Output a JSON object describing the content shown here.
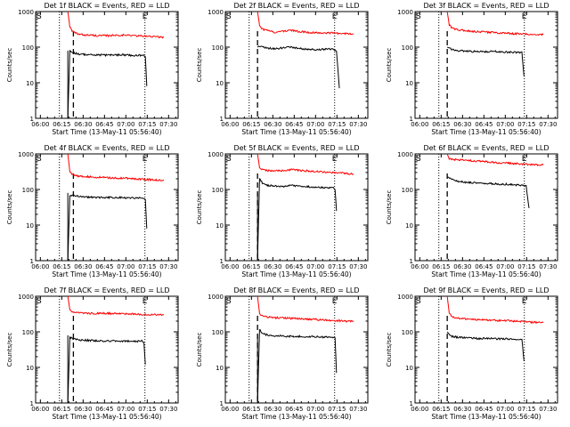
{
  "chart_data": [
    {
      "type": "line",
      "title": "Det 1f BLACK = Events, RED = LLD",
      "xlabel": "Start Time (13-May-11 05:56:40)",
      "ylabel": "Counts/sec",
      "yscale": "log",
      "ylim": [
        1,
        1000
      ],
      "yticks": [
        "1",
        "10",
        "100",
        "1000"
      ],
      "xticks": [
        "06:00",
        "06:15",
        "06:30",
        "06:45",
        "07:00",
        "07:15",
        "07:30"
      ],
      "x_range_minutes": [
        0,
        100
      ],
      "start_label": "S",
      "end_label": "E",
      "series": [
        {
          "name": "LLD",
          "color": "#ff0000",
          "x": [
            22.6,
            24,
            26,
            30,
            35,
            40,
            45,
            50,
            55,
            60,
            65,
            70,
            75,
            80,
            85,
            90
          ],
          "y": [
            1000,
            380,
            270,
            230,
            220,
            215,
            210,
            210,
            215,
            220,
            215,
            210,
            205,
            200,
            195,
            190
          ]
        },
        {
          "name": "Events",
          "color": "#000000",
          "x": [
            22.6,
            24,
            26,
            30,
            35,
            40,
            45,
            50,
            55,
            60,
            65,
            70,
            75,
            77,
            78
          ],
          "y": [
            1,
            80,
            70,
            65,
            62,
            60,
            60,
            60,
            60,
            62,
            60,
            58,
            60,
            55,
            8
          ]
        }
      ],
      "markers": {
        "dotted_x": [
          16.7,
          76.7
        ],
        "dashed_x": [
          26.5
        ],
        "solid_x": [
          22.6
        ]
      }
    },
    {
      "type": "line",
      "title": "Det 2f BLACK = Events, RED = LLD",
      "xlabel": "Start Time (13-May-11 05:56:40)",
      "ylabel": "Counts/sec",
      "yscale": "log",
      "ylim": [
        1,
        1000
      ],
      "yticks": [
        "1",
        "10",
        "100",
        "1000"
      ],
      "xticks": [
        "06:00",
        "06:15",
        "06:30",
        "06:45",
        "07:00",
        "07:15",
        "07:30"
      ],
      "x_range_minutes": [
        0,
        100
      ],
      "start_label": "S",
      "end_label": "E",
      "series": [
        {
          "name": "LLD",
          "color": "#ff0000",
          "x": [
            22.6,
            24,
            26,
            30,
            35,
            40,
            45,
            50,
            55,
            60,
            65,
            70,
            75,
            80,
            85,
            90
          ],
          "y": [
            1000,
            420,
            320,
            290,
            260,
            280,
            300,
            280,
            270,
            260,
            250,
            255,
            250,
            245,
            240,
            240
          ]
        },
        {
          "name": "Events",
          "color": "#000000",
          "x": [
            22.6,
            24,
            26,
            30,
            35,
            40,
            45,
            50,
            55,
            60,
            65,
            70,
            75,
            78,
            80
          ],
          "y": [
            100,
            110,
            100,
            95,
            90,
            95,
            100,
            95,
            90,
            88,
            85,
            88,
            90,
            80,
            7
          ]
        }
      ],
      "markers": {
        "dotted_x": [
          16.7,
          76.7
        ],
        "dashed_x": [
          22.6
        ],
        "solid_x": []
      }
    },
    {
      "type": "line",
      "title": "Det 3f BLACK = Events, RED = LLD",
      "xlabel": "Start Time (13-May-11 05:56:40)",
      "ylabel": "Counts/sec",
      "yscale": "log",
      "ylim": [
        1,
        1000
      ],
      "yticks": [
        "1",
        "10",
        "100",
        "1000"
      ],
      "xticks": [
        "06:00",
        "06:15",
        "06:30",
        "06:45",
        "07:00",
        "07:15",
        "07:30"
      ],
      "x_range_minutes": [
        0,
        100
      ],
      "start_label": "S",
      "end_label": "E",
      "series": [
        {
          "name": "LLD",
          "color": "#ff0000",
          "x": [
            22.6,
            24,
            26,
            30,
            35,
            40,
            45,
            50,
            55,
            60,
            65,
            70,
            75,
            80,
            85,
            90
          ],
          "y": [
            1000,
            420,
            340,
            310,
            290,
            280,
            270,
            265,
            260,
            250,
            245,
            240,
            235,
            230,
            225,
            225
          ]
        },
        {
          "name": "Events",
          "color": "#000000",
          "x": [
            22.6,
            24,
            26,
            30,
            35,
            40,
            45,
            50,
            55,
            60,
            65,
            70,
            75,
            76.5
          ],
          "y": [
            100,
            95,
            85,
            80,
            78,
            75,
            75,
            75,
            75,
            75,
            72,
            72,
            70,
            15
          ]
        }
      ],
      "markers": {
        "dotted_x": [
          16.7,
          76.7
        ],
        "dashed_x": [
          22.6
        ],
        "solid_x": []
      }
    },
    {
      "type": "line",
      "title": "Det 4f BLACK = Events, RED = LLD",
      "xlabel": "Start Time (13-May-11 05:56:40)",
      "ylabel": "Counts/sec",
      "yscale": "log",
      "ylim": [
        1,
        1000
      ],
      "yticks": [
        "1",
        "10",
        "100",
        "1000"
      ],
      "xticks": [
        "06:00",
        "06:15",
        "06:30",
        "06:45",
        "07:00",
        "07:15",
        "07:30"
      ],
      "x_range_minutes": [
        0,
        100
      ],
      "start_label": "S",
      "end_label": "E",
      "series": [
        {
          "name": "LLD",
          "color": "#ff0000",
          "x": [
            22.6,
            24,
            26,
            30,
            35,
            40,
            45,
            50,
            55,
            60,
            65,
            70,
            75,
            80,
            85,
            90
          ],
          "y": [
            1000,
            320,
            260,
            240,
            230,
            225,
            220,
            215,
            210,
            210,
            205,
            200,
            195,
            190,
            185,
            180
          ]
        },
        {
          "name": "Events",
          "color": "#000000",
          "x": [
            22.6,
            24,
            26,
            30,
            35,
            40,
            45,
            50,
            55,
            60,
            65,
            70,
            75,
            77,
            78
          ],
          "y": [
            1,
            70,
            68,
            65,
            62,
            60,
            60,
            60,
            60,
            60,
            58,
            58,
            60,
            55,
            8
          ]
        }
      ],
      "markers": {
        "dotted_x": [
          16.7,
          76.7
        ],
        "dashed_x": [
          26.5
        ],
        "solid_x": [
          22.6
        ]
      }
    },
    {
      "type": "line",
      "title": "Det 5f BLACK = Events, RED = LLD",
      "xlabel": "Start Time (13-May-11 05:56:40)",
      "ylabel": "Counts/sec",
      "yscale": "log",
      "ylim": [
        1,
        1000
      ],
      "yticks": [
        "1",
        "10",
        "100",
        "1000"
      ],
      "xticks": [
        "06:00",
        "06:15",
        "06:30",
        "06:45",
        "07:00",
        "07:15",
        "07:30"
      ],
      "x_range_minutes": [
        0,
        100
      ],
      "start_label": "S",
      "end_label": "E",
      "series": [
        {
          "name": "LLD",
          "color": "#ff0000",
          "x": [
            22.6,
            24,
            26,
            30,
            35,
            40,
            45,
            50,
            55,
            60,
            65,
            70,
            75,
            80,
            85,
            90
          ],
          "y": [
            1000,
            420,
            360,
            340,
            330,
            340,
            360,
            350,
            340,
            330,
            320,
            310,
            300,
            290,
            280,
            270
          ]
        },
        {
          "name": "Events",
          "color": "#000000",
          "x": [
            22.6,
            24,
            26,
            30,
            35,
            40,
            45,
            50,
            55,
            60,
            65,
            70,
            75,
            77,
            78
          ],
          "y": [
            1,
            200,
            150,
            130,
            125,
            120,
            130,
            125,
            120,
            120,
            115,
            110,
            115,
            100,
            25
          ]
        }
      ],
      "markers": {
        "dotted_x": [
          16.7,
          76.7
        ],
        "dashed_x": [
          22.6
        ],
        "solid_x": [
          22.6
        ]
      }
    },
    {
      "type": "line",
      "title": "Det 6f BLACK = Events, RED = LLD",
      "xlabel": "Start Time (13-May-11 05:56:40)",
      "ylabel": "Counts/sec",
      "yscale": "log",
      "ylim": [
        1,
        1000
      ],
      "yticks": [
        "1",
        "10",
        "100",
        "1000"
      ],
      "xticks": [
        "06:00",
        "06:15",
        "06:30",
        "06:45",
        "07:00",
        "07:15",
        "07:30"
      ],
      "x_range_minutes": [
        0,
        100
      ],
      "start_label": "S",
      "end_label": "E",
      "series": [
        {
          "name": "LLD",
          "color": "#ff0000",
          "x": [
            22.6,
            24,
            26,
            30,
            35,
            40,
            45,
            50,
            55,
            60,
            65,
            70,
            75,
            80,
            85,
            90
          ],
          "y": [
            1000,
            720,
            700,
            680,
            660,
            640,
            620,
            600,
            580,
            560,
            550,
            540,
            520,
            510,
            500,
            490
          ]
        },
        {
          "name": "Events",
          "color": "#000000",
          "x": [
            22.6,
            24,
            26,
            30,
            35,
            40,
            45,
            50,
            55,
            60,
            65,
            70,
            75,
            78,
            80
          ],
          "y": [
            220,
            220,
            190,
            170,
            160,
            155,
            150,
            148,
            145,
            140,
            140,
            135,
            130,
            125,
            30
          ]
        }
      ],
      "markers": {
        "dotted_x": [
          16.7,
          76.7
        ],
        "dashed_x": [
          22.6
        ],
        "solid_x": []
      }
    },
    {
      "type": "line",
      "title": "Det 7f BLACK = Events, RED = LLD",
      "xlabel": "Start Time (13-May-11 05:56:40)",
      "ylabel": "Counts/sec",
      "yscale": "log",
      "ylim": [
        1,
        1000
      ],
      "yticks": [
        "1",
        "10",
        "100",
        "1000"
      ],
      "xticks": [
        "06:00",
        "06:15",
        "06:30",
        "06:45",
        "07:00",
        "07:15",
        "07:30"
      ],
      "x_range_minutes": [
        0,
        100
      ],
      "start_label": "S",
      "end_label": "E",
      "series": [
        {
          "name": "LLD",
          "color": "#ff0000",
          "x": [
            22.6,
            24,
            26,
            30,
            35,
            40,
            45,
            50,
            55,
            60,
            65,
            70,
            75,
            80,
            85,
            90
          ],
          "y": [
            1000,
            420,
            350,
            340,
            330,
            330,
            335,
            330,
            325,
            330,
            320,
            315,
            310,
            305,
            300,
            300
          ]
        },
        {
          "name": "Events",
          "color": "#000000",
          "x": [
            22.6,
            24,
            26,
            30,
            35,
            40,
            45,
            50,
            55,
            60,
            65,
            70,
            75,
            76,
            77
          ],
          "y": [
            1,
            70,
            65,
            60,
            58,
            57,
            56,
            55,
            56,
            55,
            55,
            54,
            55,
            50,
            12
          ]
        }
      ],
      "markers": {
        "dotted_x": [
          16.7,
          76.7
        ],
        "dashed_x": [
          26.5
        ],
        "solid_x": [
          22.6
        ]
      }
    },
    {
      "type": "line",
      "title": "Det 8f BLACK = Events, RED = LLD",
      "xlabel": "Start Time (13-May-11 05:56:40)",
      "ylabel": "Counts/sec",
      "yscale": "log",
      "ylim": [
        1,
        1000
      ],
      "yticks": [
        "1",
        "10",
        "100",
        "1000"
      ],
      "xticks": [
        "06:00",
        "06:15",
        "06:30",
        "06:45",
        "07:00",
        "07:15",
        "07:30"
      ],
      "x_range_minutes": [
        0,
        100
      ],
      "start_label": "S",
      "end_label": "E",
      "series": [
        {
          "name": "LLD",
          "color": "#ff0000",
          "x": [
            22.6,
            24,
            26,
            30,
            35,
            40,
            45,
            50,
            55,
            60,
            65,
            70,
            75,
            80,
            85,
            90
          ],
          "y": [
            1000,
            330,
            280,
            260,
            250,
            245,
            240,
            235,
            230,
            225,
            220,
            215,
            210,
            205,
            200,
            200
          ]
        },
        {
          "name": "Events",
          "color": "#000000",
          "x": [
            22.6,
            24,
            26,
            30,
            35,
            40,
            45,
            50,
            55,
            60,
            65,
            70,
            75,
            77,
            78
          ],
          "y": [
            1,
            120,
            90,
            80,
            78,
            76,
            75,
            75,
            74,
            73,
            72,
            72,
            72,
            70,
            7
          ]
        }
      ],
      "markers": {
        "dotted_x": [
          16.7,
          76.7
        ],
        "dashed_x": [
          22.6
        ],
        "solid_x": [
          22.6
        ]
      }
    },
    {
      "type": "line",
      "title": "Det 9f BLACK = Events, RED = LLD",
      "xlabel": "Start Time (13-May-11 05:56:40)",
      "ylabel": "Counts/sec",
      "yscale": "log",
      "ylim": [
        1,
        1000
      ],
      "yticks": [
        "1",
        "10",
        "100",
        "1000"
      ],
      "xticks": [
        "06:00",
        "06:15",
        "06:30",
        "06:45",
        "07:00",
        "07:15",
        "07:30"
      ],
      "x_range_minutes": [
        0,
        100
      ],
      "start_label": "S",
      "end_label": "E",
      "series": [
        {
          "name": "LLD",
          "color": "#ff0000",
          "x": [
            22.6,
            24,
            26,
            30,
            35,
            40,
            45,
            50,
            55,
            60,
            65,
            70,
            75,
            80,
            85,
            90
          ],
          "y": [
            1000,
            330,
            260,
            240,
            230,
            225,
            220,
            215,
            210,
            205,
            205,
            200,
            195,
            190,
            185,
            180
          ]
        },
        {
          "name": "Events",
          "color": "#000000",
          "x": [
            22.6,
            24,
            26,
            30,
            35,
            40,
            45,
            50,
            55,
            60,
            65,
            70,
            75,
            76.5
          ],
          "y": [
            100,
            85,
            75,
            70,
            68,
            66,
            65,
            65,
            64,
            63,
            63,
            62,
            60,
            15
          ]
        }
      ],
      "markers": {
        "dotted_x": [
          16.7,
          76.7
        ],
        "dashed_x": [
          22.6
        ],
        "solid_x": []
      }
    }
  ]
}
